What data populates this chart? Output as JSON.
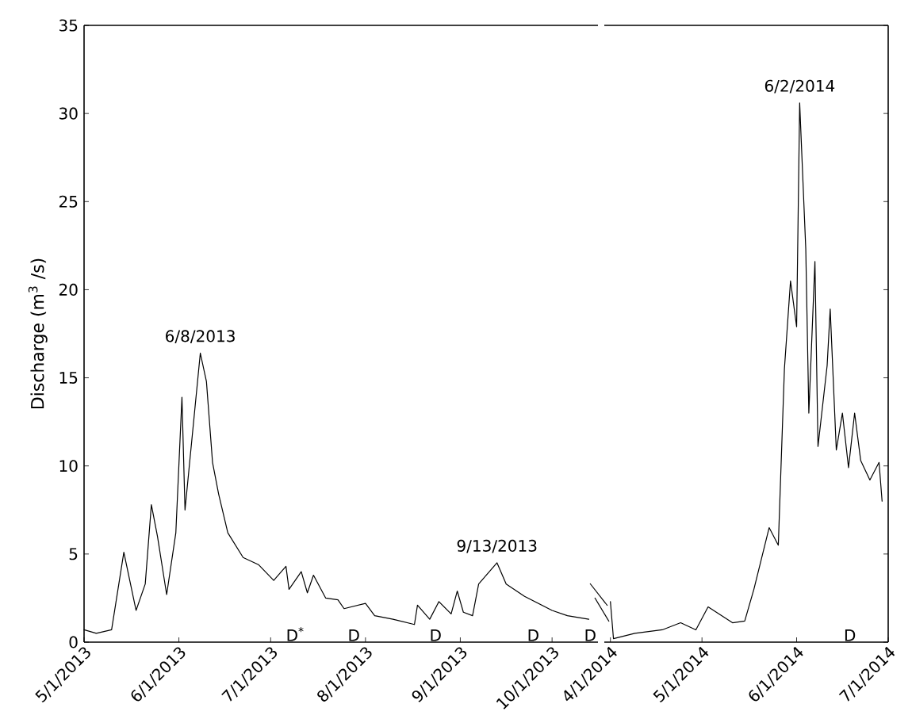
{
  "chart_data": [
    {
      "type": "line",
      "ylabel": "Discharge (m$^{3}$ /s)",
      "xlim": [
        "2013-05-01",
        "2013-10-16"
      ],
      "ylim": [
        0,
        35
      ],
      "yticks": [
        0,
        5,
        10,
        15,
        20,
        25,
        30,
        35
      ],
      "xticks": [
        {
          "value": "2013-05-01",
          "label": "5/1/2013"
        },
        {
          "value": "2013-06-01",
          "label": "6/1/2013"
        },
        {
          "value": "2013-07-01",
          "label": "7/1/2013"
        },
        {
          "value": "2013-08-01",
          "label": "8/1/2013"
        },
        {
          "value": "2013-09-01",
          "label": "9/1/2013"
        },
        {
          "value": "2013-10-01",
          "label": "10/1/2013"
        }
      ],
      "series": [
        {
          "color": "#000000",
          "x": [
            "2013-05-01",
            "2013-05-05",
            "2013-05-10",
            "2013-05-14",
            "2013-05-18",
            "2013-05-21",
            "2013-05-23",
            "2013-05-25",
            "2013-05-28",
            "2013-05-31",
            "2013-06-02",
            "2013-06-03",
            "2013-06-08",
            "2013-06-10",
            "2013-06-12",
            "2013-06-14",
            "2013-06-17",
            "2013-06-22",
            "2013-06-27",
            "2013-07-02",
            "2013-07-06",
            "2013-07-07",
            "2013-07-11",
            "2013-07-13",
            "2013-07-15",
            "2013-07-19",
            "2013-07-23",
            "2013-07-25",
            "2013-08-01",
            "2013-08-04",
            "2013-08-10",
            "2013-08-17",
            "2013-08-18",
            "2013-08-22",
            "2013-08-25",
            "2013-08-29",
            "2013-08-31",
            "2013-09-02",
            "2013-09-05",
            "2013-09-07",
            "2013-09-13",
            "2013-09-16",
            "2013-09-22",
            "2013-10-01",
            "2013-10-06",
            "2013-10-13"
          ],
          "values": [
            0.7,
            0.5,
            0.7,
            5.1,
            1.8,
            3.3,
            7.8,
            6.0,
            2.7,
            6.2,
            13.9,
            7.5,
            16.4,
            14.8,
            10.2,
            8.4,
            6.2,
            4.8,
            4.4,
            3.5,
            4.3,
            3.0,
            4.0,
            2.8,
            3.8,
            2.5,
            2.4,
            1.9,
            2.2,
            1.5,
            1.3,
            1.0,
            2.1,
            1.3,
            2.3,
            1.6,
            2.9,
            1.7,
            1.5,
            3.3,
            4.5,
            3.3,
            2.6,
            1.8,
            1.5,
            1.3
          ]
        }
      ],
      "annotations": [
        {
          "text": "6/8/2013",
          "x": "2013-06-08",
          "y": 16.4
        },
        {
          "text": "9/13/2013",
          "x": "2013-09-13",
          "y": 4.5
        },
        "D$^{*}$",
        "D",
        "D",
        "D",
        "D"
      ]
    },
    {
      "type": "line",
      "tick_labels": "x",
      "xlim": [
        "2014-03-30",
        "2014-07-01"
      ],
      "ylim": [
        0,
        35
      ],
      "yticks": [
        0,
        5,
        10,
        15,
        20,
        25,
        30,
        35
      ],
      "xticks": [
        {
          "value": "2014-04-01",
          "label": "4/1/2014"
        },
        {
          "value": "2014-05-01",
          "label": "5/1/2014"
        },
        {
          "value": "2014-06-01",
          "label": "6/1/2014"
        },
        {
          "value": "2014-07-01",
          "label": "7/1/2014"
        }
      ],
      "series": [
        {
          "color": "#000000",
          "x": [
            "2014-04-01",
            "2014-04-02",
            "2014-04-09",
            "2014-04-18",
            "2014-04-24",
            "2014-04-29",
            "2014-05-03",
            "2014-05-11",
            "2014-05-15",
            "2014-05-18",
            "2014-05-23",
            "2014-05-26",
            "2014-05-28",
            "2014-05-30",
            "2014-06-01",
            "2014-06-02",
            "2014-06-04",
            "2014-06-05",
            "2014-06-07",
            "2014-06-08",
            "2014-06-11",
            "2014-06-12",
            "2014-06-14",
            "2014-06-16",
            "2014-06-18",
            "2014-06-20",
            "2014-06-22",
            "2014-06-25",
            "2014-06-28",
            "2014-06-29"
          ],
          "values": [
            2.3,
            0.2,
            0.5,
            0.7,
            1.1,
            0.7,
            2.0,
            1.1,
            1.2,
            3.0,
            6.5,
            5.5,
            15.5,
            20.5,
            17.9,
            30.6,
            22.3,
            13.0,
            21.6,
            11.1,
            15.7,
            18.9,
            10.9,
            13.0,
            9.9,
            13.0,
            10.3,
            9.2,
            10.2,
            8.0
          ]
        }
      ],
      "annotations": [
        {
          "text": "6/2/2014",
          "x": "2014-06-02",
          "y": 30.6
        },
        "D"
      ]
    }
  ]
}
